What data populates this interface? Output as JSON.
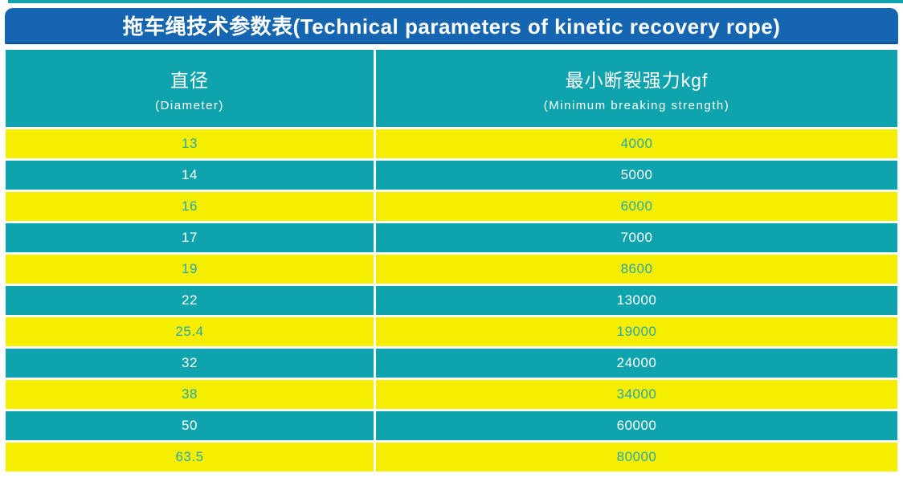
{
  "title": "拖车绳技术参数表(Technical parameters of kinetic recovery rope)",
  "table": {
    "columns": [
      {
        "zh": "直径",
        "en": "(Diameter)"
      },
      {
        "zh": "最小断裂强力kgf",
        "en": "(Minimum breaking strength)"
      }
    ],
    "rows": [
      {
        "diameter": "13",
        "strength": "4000"
      },
      {
        "diameter": "14",
        "strength": "5000"
      },
      {
        "diameter": "16",
        "strength": "6000"
      },
      {
        "diameter": "17",
        "strength": "7000"
      },
      {
        "diameter": "19",
        "strength": "8600"
      },
      {
        "diameter": "22",
        "strength": "13000"
      },
      {
        "diameter": "25.4",
        "strength": "19000"
      },
      {
        "diameter": "32",
        "strength": "24000"
      },
      {
        "diameter": "38",
        "strength": "34000"
      },
      {
        "diameter": "50",
        "strength": "60000"
      },
      {
        "diameter": "63.5",
        "strength": "80000"
      }
    ]
  },
  "colors": {
    "blue": "#1565b1",
    "teal": "#0fa3ae",
    "yellow": "#f6ee00",
    "text_on_yellow": "#2aa8ab",
    "text_on_teal": "#ffffff"
  }
}
